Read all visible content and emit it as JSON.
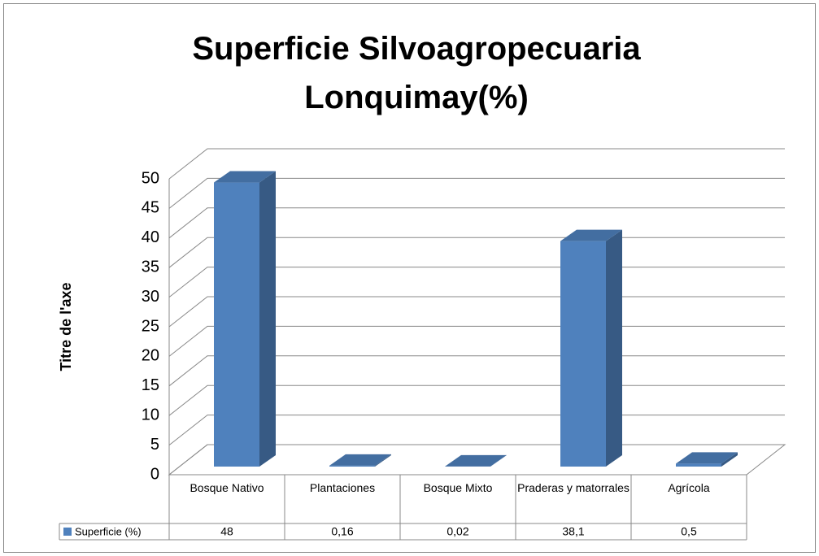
{
  "chart_data": {
    "type": "bar3d",
    "title": "Superficie Silvoagropecuaria Lonquimay(%)",
    "y_axis_label": "Titre de l'axe",
    "categories": [
      "Bosque Nativo",
      "Plantaciones",
      "Bosque Mixto",
      "Praderas y matorrales",
      "Agrícola"
    ],
    "series": [
      {
        "name": "Superficie (%)",
        "color": "#4f81bd",
        "values": [
          48,
          0.16,
          0.02,
          38.1,
          0.5
        ],
        "value_labels": [
          "48",
          "0,16",
          "0,02",
          "38,1",
          "0,5"
        ]
      }
    ],
    "ylim": [
      0,
      50
    ],
    "yticks": [
      0,
      5,
      10,
      15,
      20,
      25,
      30,
      35,
      40,
      45,
      50
    ],
    "grid": true
  }
}
